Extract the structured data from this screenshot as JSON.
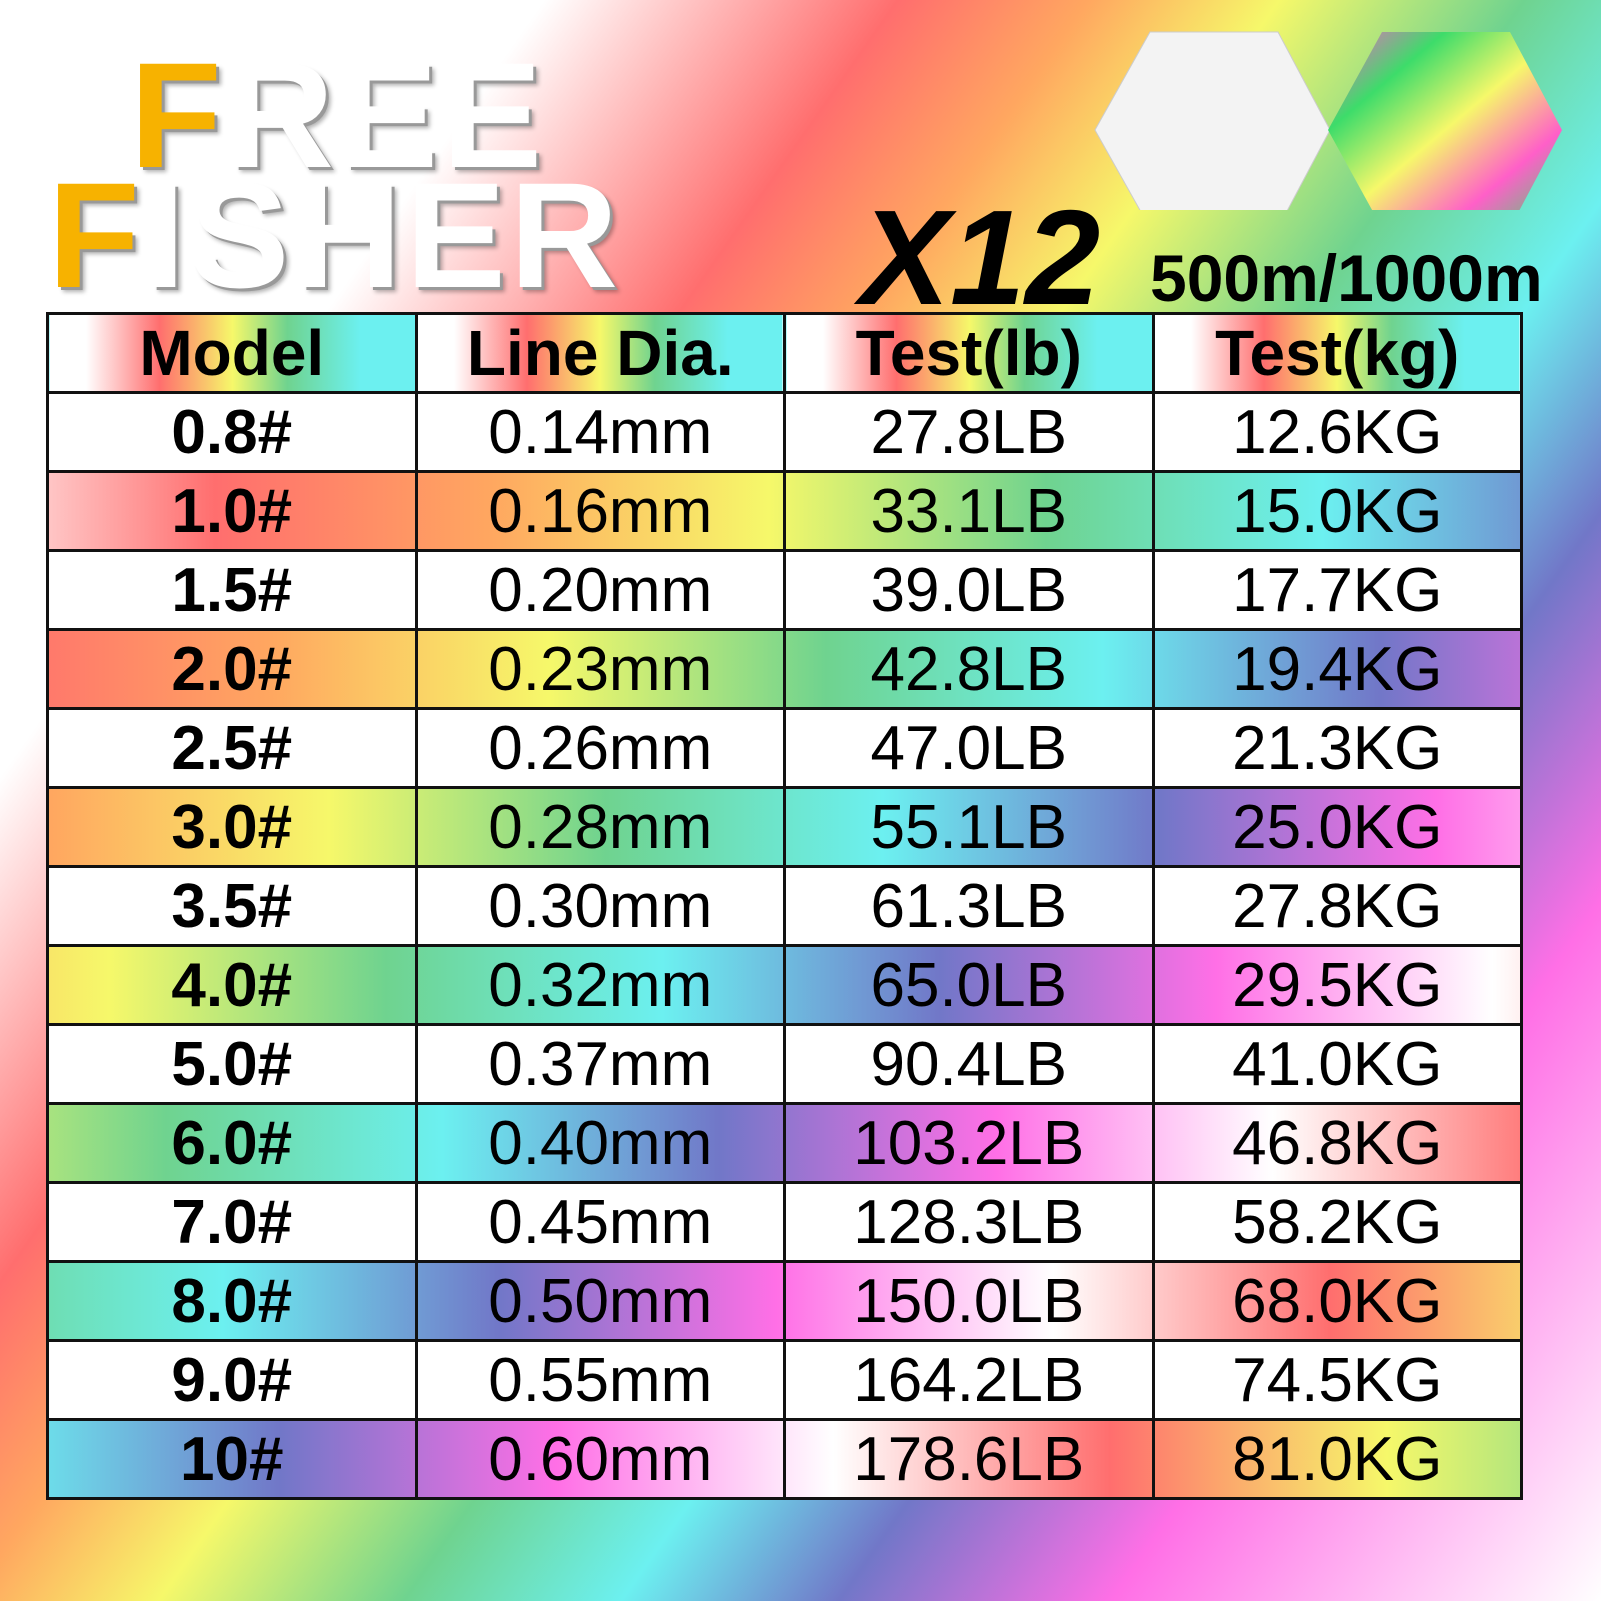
{
  "logo": {
    "line1": "FREE",
    "line2": "FISHER"
  },
  "badge": "X12",
  "length": "500m/1000m",
  "table": {
    "header": [
      "Model",
      "Line Dia.",
      "Test(lb)",
      "Test(kg)"
    ],
    "rows": [
      [
        "0.8#",
        "0.14mm",
        "27.8LB",
        "12.6KG"
      ],
      [
        "1.0#",
        "0.16mm",
        "33.1LB",
        "15.0KG"
      ],
      [
        "1.5#",
        "0.20mm",
        "39.0LB",
        "17.7KG"
      ],
      [
        "2.0#",
        "0.23mm",
        "42.8LB",
        "19.4KG"
      ],
      [
        "2.5#",
        "0.26mm",
        "47.0LB",
        "21.3KG"
      ],
      [
        "3.0#",
        "0.28mm",
        "55.1LB",
        "25.0KG"
      ],
      [
        "3.5#",
        "0.30mm",
        "61.3LB",
        "27.8KG"
      ],
      [
        "4.0#",
        "0.32mm",
        "65.0LB",
        "29.5KG"
      ],
      [
        "5.0#",
        "0.37mm",
        "90.4LB",
        "41.0KG"
      ],
      [
        "6.0#",
        "0.40mm",
        "103.2LB",
        "46.8KG"
      ],
      [
        "7.0#",
        "0.45mm",
        "128.3LB",
        "58.2KG"
      ],
      [
        "8.0#",
        "0.50mm",
        "150.0LB",
        "68.0KG"
      ],
      [
        "9.0#",
        "0.55mm",
        "164.2LB",
        "74.5KG"
      ],
      [
        "10#",
        "0.60mm",
        "178.6LB",
        "81.0KG"
      ]
    ]
  }
}
